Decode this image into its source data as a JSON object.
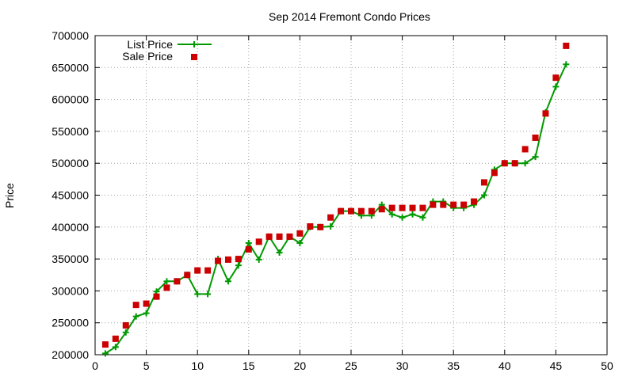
{
  "chart_data": {
    "type": "line",
    "title": "Sep 2014 Fremont Condo Prices",
    "xlabel": "",
    "ylabel": "Price",
    "xlim": [
      0,
      50
    ],
    "ylim": [
      200000,
      700000
    ],
    "x_ticks": [
      0,
      5,
      10,
      15,
      20,
      25,
      30,
      35,
      40,
      45,
      50
    ],
    "y_ticks": [
      200000,
      250000,
      300000,
      350000,
      400000,
      450000,
      500000,
      550000,
      600000,
      650000,
      700000
    ],
    "grid": true,
    "legend_position": "top-left",
    "series": [
      {
        "name": "List Price",
        "style": "line-with-plus-markers",
        "color": "#009900",
        "x": [
          1,
          2,
          3,
          4,
          5,
          6,
          7,
          8,
          9,
          10,
          11,
          12,
          13,
          14,
          15,
          16,
          17,
          18,
          19,
          20,
          21,
          22,
          23,
          24,
          25,
          26,
          27,
          28,
          29,
          30,
          31,
          32,
          33,
          34,
          35,
          36,
          37,
          38,
          39,
          40,
          41,
          42,
          43,
          44,
          45,
          46
        ],
        "y": [
          202000,
          212000,
          235000,
          260000,
          265000,
          299000,
          315000,
          315000,
          325000,
          295000,
          295000,
          350000,
          315000,
          340000,
          375000,
          349000,
          385000,
          360000,
          385000,
          375000,
          400000,
          400000,
          401000,
          425000,
          425000,
          418000,
          418000,
          435000,
          420000,
          415000,
          420000,
          415000,
          440000,
          440000,
          430000,
          430000,
          435000,
          450000,
          490000,
          500000,
          500000,
          500000,
          510000,
          580000,
          620000,
          655000
        ]
      },
      {
        "name": "Sale Price",
        "style": "square-markers",
        "color": "#cc0000",
        "x": [
          1,
          2,
          3,
          4,
          5,
          6,
          7,
          8,
          9,
          10,
          11,
          12,
          13,
          14,
          15,
          16,
          17,
          18,
          19,
          20,
          21,
          22,
          23,
          24,
          25,
          26,
          27,
          28,
          29,
          30,
          31,
          32,
          33,
          34,
          35,
          36,
          37,
          38,
          39,
          40,
          41,
          42,
          43,
          44,
          45,
          46
        ],
        "y": [
          216000,
          225000,
          246000,
          278000,
          280000,
          291000,
          305000,
          315000,
          325000,
          332000,
          332000,
          347000,
          349000,
          350000,
          365000,
          377000,
          385000,
          385000,
          385000,
          390000,
          401000,
          400000,
          415000,
          425000,
          425000,
          425000,
          425000,
          428000,
          430000,
          430000,
          430000,
          430000,
          435000,
          435000,
          435000,
          435000,
          440000,
          470000,
          485000,
          500000,
          500000,
          522000,
          540000,
          578000,
          634000,
          684000
        ]
      }
    ]
  }
}
